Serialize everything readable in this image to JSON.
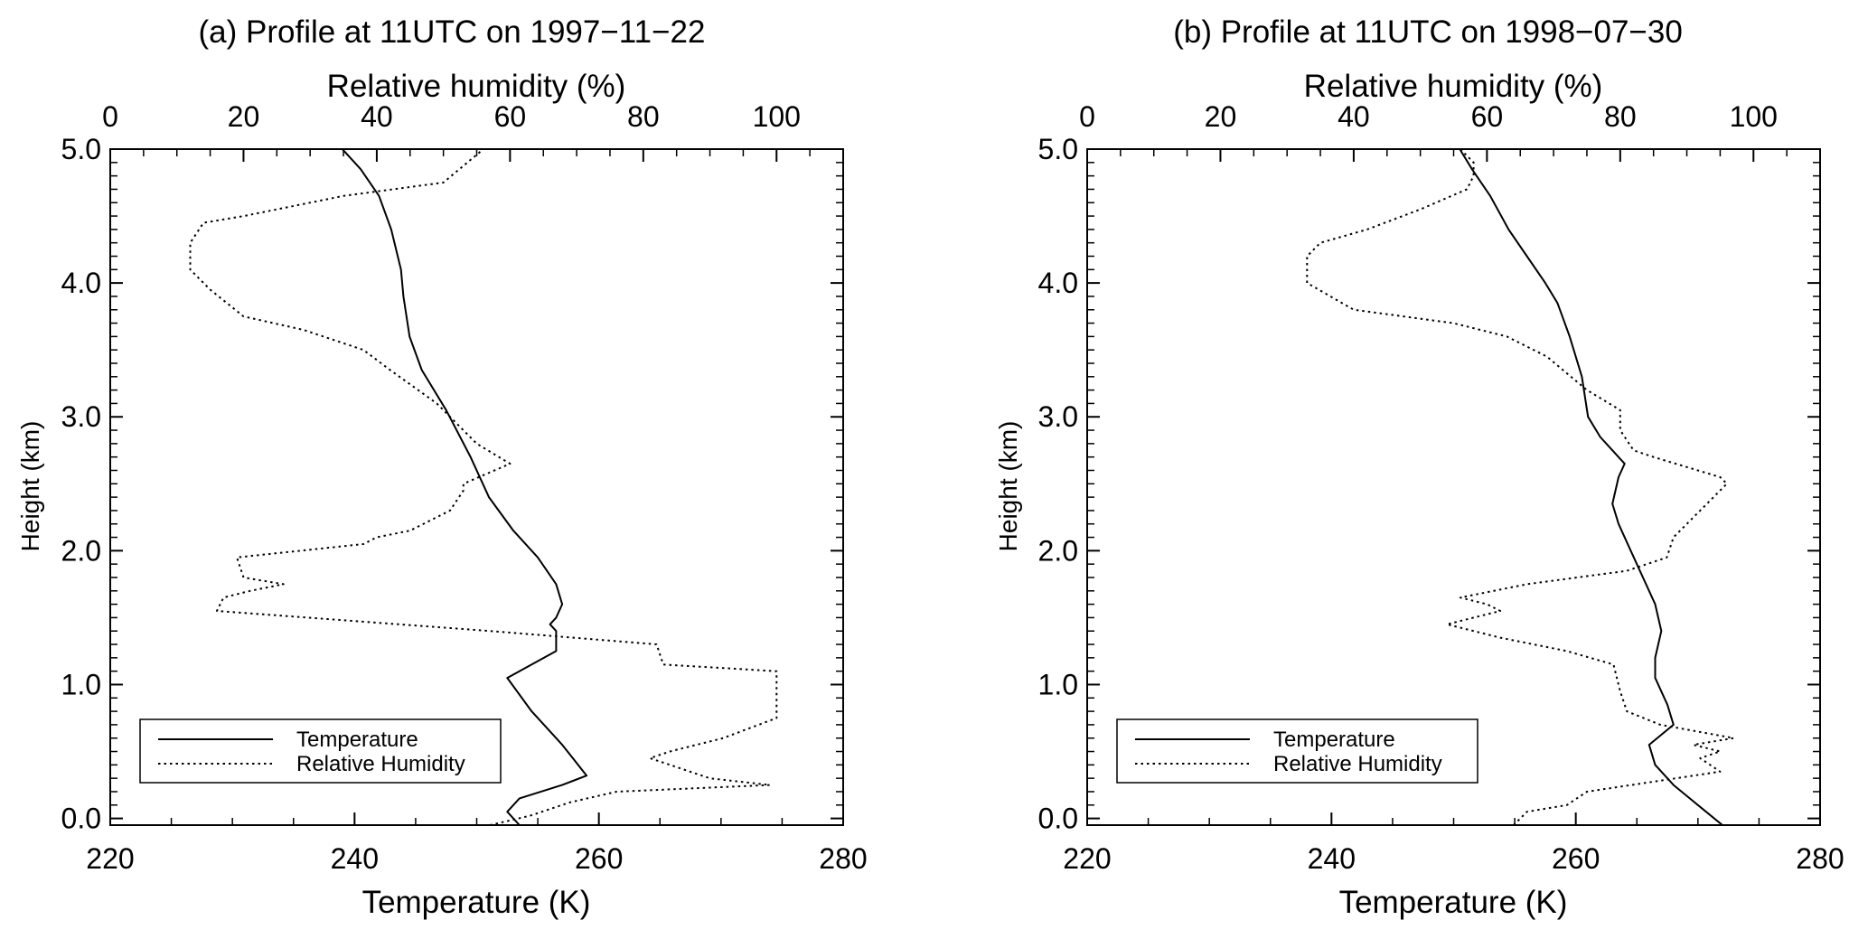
{
  "chart_data": [
    {
      "type": "line",
      "title": "(a) Profile at 11UTC on 1997−11−22",
      "xlabel": "Temperature (K)",
      "x2label": "Relative humidity (%)",
      "ylabel": "Height (km)",
      "xlim": [
        220,
        280
      ],
      "x2lim": [
        0,
        110
      ],
      "ylim": [
        -0.05,
        5.0
      ],
      "xticks": [
        "220",
        "240",
        "260",
        "280"
      ],
      "x2ticks": [
        "0",
        "20",
        "40",
        "60",
        "80",
        "100"
      ],
      "yticks": [
        "0.0",
        "1.0",
        "2.0",
        "3.0",
        "4.0",
        "5.0"
      ],
      "legend_position": "bottom-left",
      "series": [
        {
          "name": "Temperature",
          "axis": "temperature",
          "style": "solid",
          "points": [
            [
              253.5,
              -0.05
            ],
            [
              252.5,
              0.05
            ],
            [
              253.5,
              0.15
            ],
            [
              257,
              0.25
            ],
            [
              259,
              0.32
            ],
            [
              257,
              0.55
            ],
            [
              254.5,
              0.8
            ],
            [
              252.5,
              1.05
            ],
            [
              256.5,
              1.25
            ],
            [
              256.5,
              1.4
            ],
            [
              256,
              1.45
            ],
            [
              256.5,
              1.5
            ],
            [
              257,
              1.6
            ],
            [
              256.5,
              1.75
            ],
            [
              255,
              1.95
            ],
            [
              253,
              2.15
            ],
            [
              251,
              2.4
            ],
            [
              249.5,
              2.7
            ],
            [
              247.5,
              3.05
            ],
            [
              245.5,
              3.35
            ],
            [
              244.5,
              3.6
            ],
            [
              244,
              3.9
            ],
            [
              243.8,
              4.1
            ],
            [
              243,
              4.4
            ],
            [
              242,
              4.65
            ],
            [
              240.5,
              4.85
            ],
            [
              239,
              5.0
            ]
          ]
        },
        {
          "name": "Relative Humidity",
          "axis": "humidity",
          "style": "dotted",
          "points": [
            [
              57,
              -0.05
            ],
            [
              63,
              0.02
            ],
            [
              69,
              0.12
            ],
            [
              76,
              0.2
            ],
            [
              99,
              0.25
            ],
            [
              90,
              0.3
            ],
            [
              84,
              0.4
            ],
            [
              81,
              0.45
            ],
            [
              84,
              0.5
            ],
            [
              92,
              0.6
            ],
            [
              100,
              0.75
            ],
            [
              100,
              0.9
            ],
            [
              100,
              1.0
            ],
            [
              100,
              1.1
            ],
            [
              83,
              1.15
            ],
            [
              82,
              1.3
            ],
            [
              57,
              1.4
            ],
            [
              16,
              1.55
            ],
            [
              17,
              1.65
            ],
            [
              21,
              1.7
            ],
            [
              26,
              1.75
            ],
            [
              20,
              1.8
            ],
            [
              19,
              1.95
            ],
            [
              38,
              2.05
            ],
            [
              40,
              2.1
            ],
            [
              45,
              2.15
            ],
            [
              51,
              2.3
            ],
            [
              53,
              2.45
            ],
            [
              53,
              2.5
            ],
            [
              60,
              2.65
            ],
            [
              55,
              2.8
            ],
            [
              49,
              3.1
            ],
            [
              42,
              3.35
            ],
            [
              38,
              3.5
            ],
            [
              29,
              3.65
            ],
            [
              20,
              3.75
            ],
            [
              15,
              3.95
            ],
            [
              12,
              4.1
            ],
            [
              12,
              4.3
            ],
            [
              14,
              4.45
            ],
            [
              20,
              4.5
            ],
            [
              35,
              4.65
            ],
            [
              50,
              4.75
            ],
            [
              56,
              5.0
            ]
          ]
        }
      ]
    },
    {
      "type": "line",
      "title": "(b) Profile at 11UTC on 1998−07−30",
      "xlabel": "Temperature (K)",
      "x2label": "Relative humidity (%)",
      "ylabel": "Height (km)",
      "xlim": [
        220,
        280
      ],
      "x2lim": [
        0,
        110
      ],
      "ylim": [
        -0.05,
        5.0
      ],
      "xticks": [
        "220",
        "240",
        "260",
        "280"
      ],
      "x2ticks": [
        "0",
        "20",
        "40",
        "60",
        "80",
        "100"
      ],
      "yticks": [
        "0.0",
        "1.0",
        "2.0",
        "3.0",
        "4.0",
        "5.0"
      ],
      "legend_position": "bottom-left",
      "series": [
        {
          "name": "Temperature",
          "axis": "temperature",
          "style": "solid",
          "points": [
            [
              272,
              -0.05
            ],
            [
              270,
              0.1
            ],
            [
              268,
              0.25
            ],
            [
              266.5,
              0.4
            ],
            [
              266,
              0.55
            ],
            [
              268,
              0.7
            ],
            [
              267.5,
              0.85
            ],
            [
              266.5,
              1.05
            ],
            [
              266.5,
              1.2
            ],
            [
              267,
              1.4
            ],
            [
              266.5,
              1.6
            ],
            [
              265.5,
              1.8
            ],
            [
              264.5,
              2.0
            ],
            [
              263.5,
              2.2
            ],
            [
              263,
              2.35
            ],
            [
              263.5,
              2.55
            ],
            [
              264,
              2.65
            ],
            [
              262,
              2.85
            ],
            [
              261,
              3.0
            ],
            [
              260.5,
              3.3
            ],
            [
              259.5,
              3.6
            ],
            [
              258.5,
              3.85
            ],
            [
              257.5,
              4.0
            ],
            [
              256,
              4.2
            ],
            [
              254.5,
              4.4
            ],
            [
              253,
              4.65
            ],
            [
              251.5,
              4.85
            ],
            [
              250.5,
              5.0
            ]
          ]
        },
        {
          "name": "Relative Humidity",
          "axis": "humidity",
          "style": "dotted",
          "points": [
            [
              64,
              -0.05
            ],
            [
              66,
              0.05
            ],
            [
              72,
              0.1
            ],
            [
              75,
              0.2
            ],
            [
              95,
              0.35
            ],
            [
              92,
              0.45
            ],
            [
              95,
              0.5
            ],
            [
              91,
              0.55
            ],
            [
              97,
              0.6
            ],
            [
              86,
              0.7
            ],
            [
              81,
              0.8
            ],
            [
              80,
              0.95
            ],
            [
              79,
              1.15
            ],
            [
              72,
              1.25
            ],
            [
              62,
              1.35
            ],
            [
              54,
              1.45
            ],
            [
              62,
              1.55
            ],
            [
              60,
              1.6
            ],
            [
              56,
              1.65
            ],
            [
              66,
              1.75
            ],
            [
              81,
              1.85
            ],
            [
              87,
              1.95
            ],
            [
              88,
              2.1
            ],
            [
              92,
              2.3
            ],
            [
              96,
              2.5
            ],
            [
              95,
              2.55
            ],
            [
              85,
              2.7
            ],
            [
              82,
              2.75
            ],
            [
              80,
              2.9
            ],
            [
              80,
              3.05
            ],
            [
              75,
              3.2
            ],
            [
              69,
              3.45
            ],
            [
              63,
              3.6
            ],
            [
              55,
              3.7
            ],
            [
              40,
              3.8
            ],
            [
              33,
              4.0
            ],
            [
              33,
              4.2
            ],
            [
              35,
              4.3
            ],
            [
              42,
              4.4
            ],
            [
              50,
              4.55
            ],
            [
              57,
              4.7
            ],
            [
              58,
              4.8
            ],
            [
              58,
              4.9
            ],
            [
              56,
              5.0
            ]
          ]
        }
      ]
    }
  ]
}
